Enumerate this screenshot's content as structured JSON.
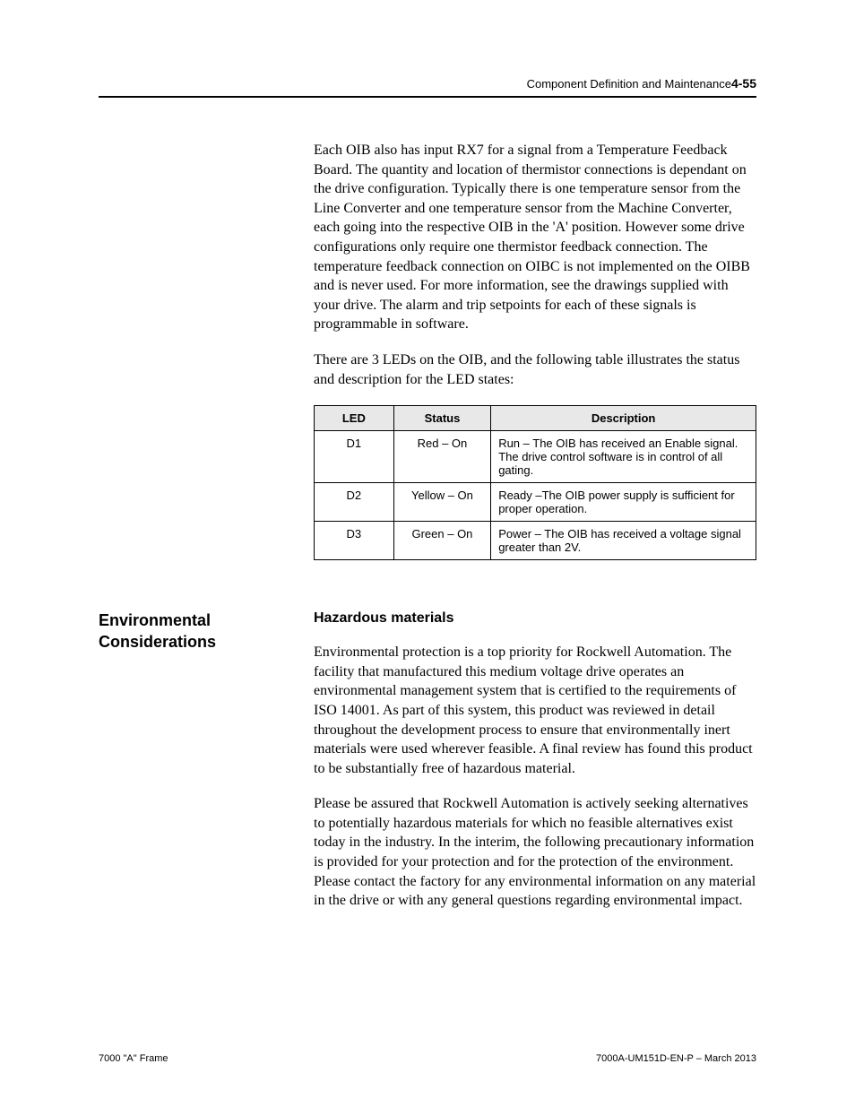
{
  "header": {
    "title": "Component Definition and Maintenance",
    "page": "4-55"
  },
  "body": {
    "para1": "Each OIB also has input RX7 for a signal from a Temperature Feedback Board.  The quantity and location of thermistor connections is dependant on the drive configuration.  Typically there is one temperature sensor from the Line Converter and one temperature sensor from the Machine Converter, each going into the respective OIB in the 'A' position.  However some drive configurations only require one thermistor feedback connection.   The temperature feedback connection on OIBC is not implemented on the OIBB and is never used.  For more information, see the drawings supplied with your drive.  The alarm and trip setpoints for each of these signals is programmable in software.",
    "para2": "There are 3 LEDs on the OIB, and the following table illustrates the status and description for the LED states:"
  },
  "table": {
    "headers": {
      "led": "LED",
      "status": "Status",
      "description": "Description"
    },
    "rows": [
      {
        "led": "D1",
        "status": "Red – On",
        "description": "Run – The OIB has received an Enable signal.  The drive control software is in control of all gating."
      },
      {
        "led": "D2",
        "status": "Yellow – On",
        "description": "Ready –The OIB power supply is sufficient for proper operation."
      },
      {
        "led": "D3",
        "status": "Green – On",
        "description": "Power – The OIB has received a voltage signal greater than 2V."
      }
    ]
  },
  "section": {
    "side_heading": "Environmental Considerations",
    "sub_heading": "Hazardous materials",
    "para1": "Environmental protection is a top priority for Rockwell Automation.  The facility that manufactured this medium voltage drive operates an environmental management system that is certified to the requirements of ISO 14001.  As part of this system, this product was reviewed in detail throughout the development process to ensure that environmentally inert materials were used wherever feasible.  A final review has found this product to be substantially free of hazardous material.",
    "para2": "Please be assured that Rockwell Automation is actively seeking alternatives to potentially hazardous materials for which no feasible alternatives exist today in the industry.  In the interim, the following precautionary information is provided for your protection and for the protection of the environment.  Please contact the factory for any environmental information on any material in the drive or with any general questions regarding environmental impact."
  },
  "footer": {
    "left": "7000 \"A\" Frame",
    "right": "7000A-UM151D-EN-P – March 2013"
  }
}
